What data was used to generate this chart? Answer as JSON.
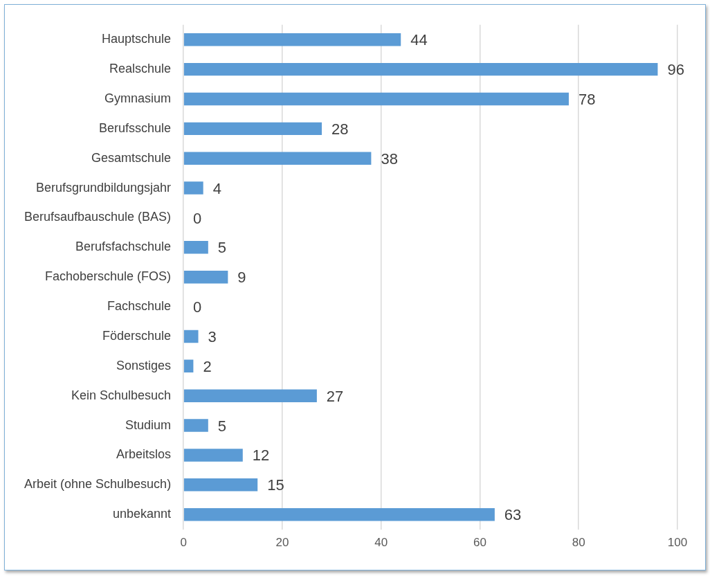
{
  "chart_data": {
    "type": "bar",
    "orientation": "horizontal",
    "categories": [
      "Hauptschule",
      "Realschule",
      "Gymnasium",
      "Berufsschule",
      "Gesamtschule",
      "Berufsgrundbildungsjahr",
      "Berufsaufbauschule (BAS)",
      "Berufsfachschule",
      "Fachoberschule (FOS)",
      "Fachschule",
      "Föderschule",
      "Sonstiges",
      "Kein Schulbesuch",
      "Studium",
      "Arbeitslos",
      "Arbeit (ohne Schulbesuch)",
      "unbekannt"
    ],
    "values": [
      44,
      96,
      78,
      28,
      38,
      4,
      0,
      5,
      9,
      0,
      3,
      2,
      27,
      5,
      12,
      15,
      63
    ],
    "color": "#5b9bd5",
    "xlim": [
      0,
      100
    ],
    "xticks": [
      0,
      20,
      40,
      60,
      80,
      100
    ],
    "grid": "x",
    "data_labels": true
  }
}
